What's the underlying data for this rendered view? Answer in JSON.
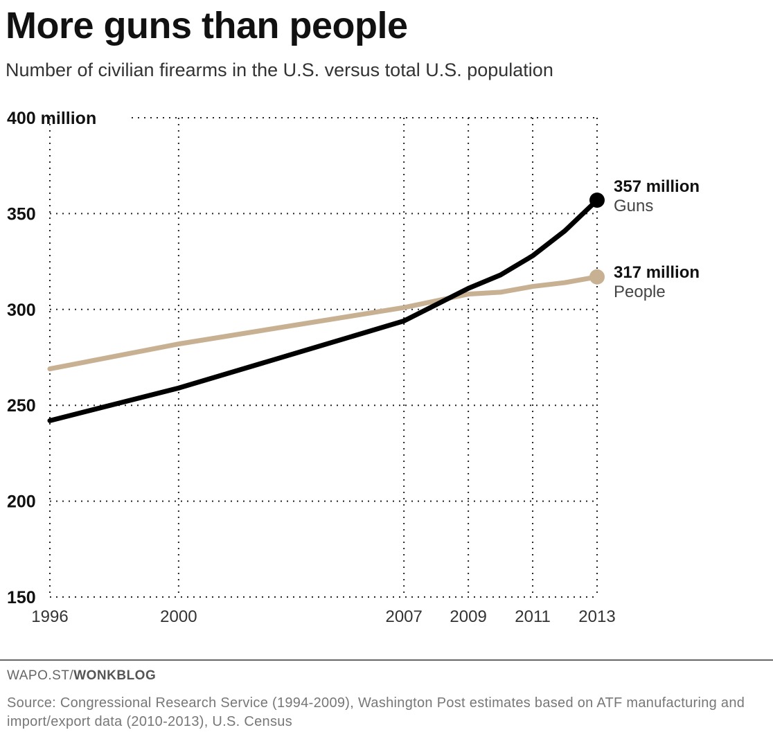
{
  "title": "More guns than people",
  "subtitle": "Number of civilian firearms in the U.S. versus total U.S. population",
  "credit": {
    "prefix": "WAPO.ST/",
    "brand": "WONKBLOG"
  },
  "source": "Source: Congressional Research Service (1994-2009), Washington Post estimates based on ATF manufacturing and import/export data (2010-2013), U.S. Census",
  "chart_data": {
    "type": "line",
    "title": "More guns than people",
    "xlabel": "",
    "ylabel": "million",
    "ylim": [
      150,
      400
    ],
    "xlim": [
      1996,
      2013
    ],
    "y_ticks": [
      {
        "v": 400,
        "label": "400 million"
      },
      {
        "v": 350,
        "label": "350"
      },
      {
        "v": 300,
        "label": "300"
      },
      {
        "v": 250,
        "label": "250"
      },
      {
        "v": 200,
        "label": "200"
      },
      {
        "v": 150,
        "label": "150"
      }
    ],
    "x_ticks": [
      1996,
      2000,
      2007,
      2009,
      2011,
      2013
    ],
    "grid": true,
    "series": [
      {
        "name": "Guns",
        "color": "#000000",
        "end_label": "357 million",
        "x": [
          1996,
          2000,
          2007,
          2009,
          2010,
          2011,
          2012,
          2013
        ],
        "y": [
          242,
          259,
          294,
          311,
          318,
          328,
          341,
          357
        ]
      },
      {
        "name": "People",
        "color": "#c8b193",
        "end_label": "317 million",
        "x": [
          1996,
          2000,
          2007,
          2009,
          2010,
          2011,
          2012,
          2013
        ],
        "y": [
          269,
          282,
          301,
          308,
          309,
          312,
          314,
          317
        ]
      }
    ]
  }
}
